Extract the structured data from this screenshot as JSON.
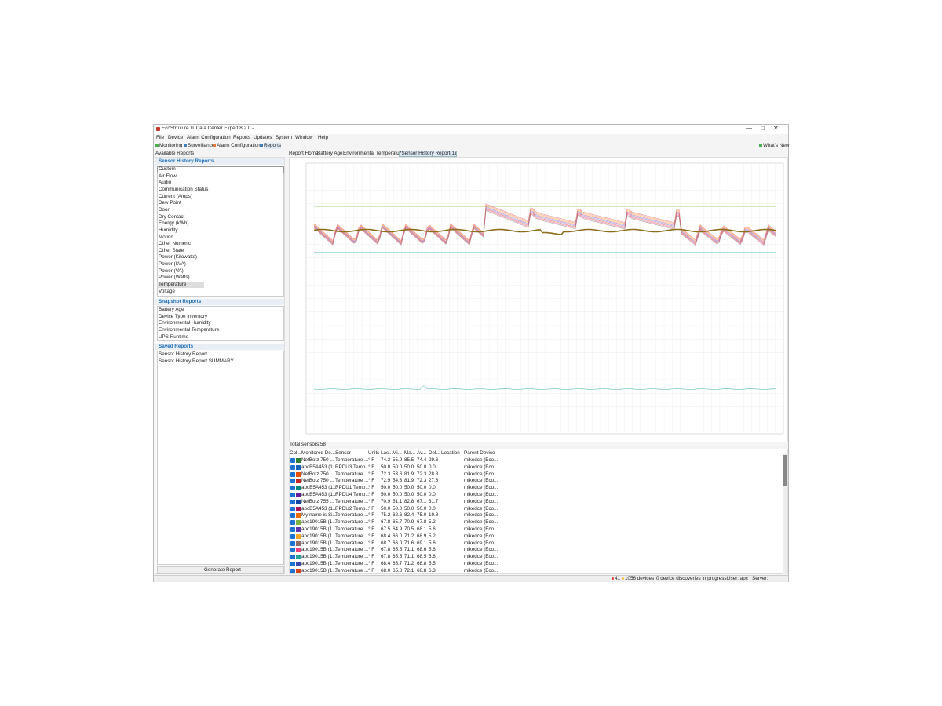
{
  "window": {
    "title": "EcoStruxure IT Data Center Expert 8.2.0 -",
    "menu": [
      "File",
      "Device",
      "Alarm Configuration",
      "Reports",
      "Updates",
      "System",
      "Window",
      "Help"
    ],
    "toolbar": [
      "Monitoring",
      "Surveillance",
      "Alarm Configuration",
      "Reports"
    ],
    "whats_new": "What's New"
  },
  "sidebar": {
    "title": "Available Reports",
    "sections": [
      {
        "title": "Sensor History Reports",
        "items": [
          "Custom",
          "Air Flow",
          "Audio",
          "Communication Status",
          "Current (Amps)",
          "Dew Point",
          "Door",
          "Dry Contact",
          "Energy (kWh)",
          "Humidity",
          "Motion",
          "Other Numeric",
          "Other State",
          "Power (Kilowatts)",
          "Power (kVA)",
          "Power (VA)",
          "Power (Watts)",
          "Temperature",
          "Voltage"
        ]
      },
      {
        "title": "Snapshot Reports",
        "items": [
          "Battery Age",
          "Device Type Inventory",
          "Environmental Humidity",
          "Environmental Temperature",
          "UPS Runtime"
        ]
      },
      {
        "title": "Saved Reports",
        "items": [
          "Sensor History Report",
          "Sensor History Report SUMMARY"
        ]
      }
    ],
    "button": "Generate Report"
  },
  "tabs": [
    "Report Home",
    "Battery Age",
    "Environmental Temperature",
    "*Sensor History Report(1)"
  ],
  "total_sensors": "Total sensors:58",
  "table": {
    "columns": [
      "Col...",
      "Monitored De...",
      "Sensor",
      "Units",
      "Las...",
      "Mi...",
      "Ma...",
      "Av...",
      "Del...",
      "Location",
      "Parent Device"
    ],
    "row_colors": [
      "#2e7d32",
      "#1565c0",
      "#e65100",
      "#c62828",
      "#00897b",
      "#6a1b9a",
      "#0d47a1",
      "#ad1457",
      "#ef6c00",
      "#7cb342",
      "#5e35b1",
      "#f9a825",
      "#8d6e63",
      "#ec407a",
      "#26a69a",
      "#3949ab",
      "#d84315"
    ],
    "rows": [
      [
        "NetBotz 750 ...",
        "Temperature ...",
        "° F",
        "74.3",
        "55.9",
        "85.5",
        "74.4",
        "29.6",
        "mikedce (Eco..."
      ],
      [
        "apcB5A453 (1...",
        "RPDU3 Temp...",
        "° F",
        "50.0",
        "50.0",
        "50.0",
        "50.0",
        "0.0",
        "mikedce (Eco..."
      ],
      [
        "NetBotz 750 ...",
        "Temperature ...",
        "° F",
        "72.3",
        "53.6",
        "81.9",
        "72.3",
        "28.3",
        "mikedce (Eco..."
      ],
      [
        "NetBotz 750 ...",
        "Temperature ...",
        "° F",
        "72.9",
        "54.3",
        "81.9",
        "72.3",
        "27.6",
        "mikedce (Eco..."
      ],
      [
        "apcB5A453 (1...",
        "RPDU1 Temp...",
        "° F",
        "50.0",
        "50.0",
        "50.0",
        "50.0",
        "0.0",
        "mikedce (Eco..."
      ],
      [
        "apcB5A453 (1...",
        "RPDU4 Temp...",
        "° F",
        "50.0",
        "50.0",
        "50.0",
        "50.0",
        "0.0",
        "mikedce (Eco..."
      ],
      [
        "NetBotz 755 ...",
        "Temperature ...",
        "° F",
        "70.9",
        "51.1",
        "82.8",
        "67.1",
        "31.7",
        "mikedce (Eco..."
      ],
      [
        "apcB5A453 (1...",
        "RPDU2 Temp...",
        "° F",
        "50.0",
        "50.0",
        "50.0",
        "50.0",
        "0.0",
        "mikedce (Eco..."
      ],
      [
        "My name is Si...",
        "Temperature ...",
        "° F",
        "75.2",
        "62.6",
        "82.4",
        "75.0",
        "19.8",
        "mikedce (Eco..."
      ],
      [
        "apc19015B (1...",
        "Temperature ...",
        "° F",
        "67.8",
        "65.7",
        "70.9",
        "67.8",
        "5.2",
        "mikedce (Eco..."
      ],
      [
        "apc19015B (1...",
        "Temperature ...",
        "° F",
        "67.5",
        "64.9",
        "70.5",
        "68.1",
        "5.6",
        "mikedce (Eco..."
      ],
      [
        "apc19015B (1...",
        "Temperature ...",
        "° F",
        "68.4",
        "66.0",
        "71.2",
        "68.9",
        "5.2",
        "mikedce (Eco..."
      ],
      [
        "apc19015B (1...",
        "Temperature ...",
        "° F",
        "68.7",
        "66.0",
        "71.6",
        "69.1",
        "5.6",
        "mikedce (Eco..."
      ],
      [
        "apc19015B (1...",
        "Temperature ...",
        "° F",
        "67.8",
        "65.5",
        "71.1",
        "68.6",
        "5.6",
        "mikedce (Eco..."
      ],
      [
        "apc19015B (1...",
        "Temperature ...",
        "° F",
        "67.8",
        "65.5",
        "71.1",
        "68.5",
        "5.6",
        "mikedce (Eco..."
      ],
      [
        "apc19015B (1...",
        "Temperature ...",
        "° F",
        "68.4",
        "65.7",
        "71.2",
        "68.8",
        "5.5",
        "mikedce (Eco..."
      ],
      [
        "apc19015B (1...",
        "Temperature ...",
        "° F",
        "68.0",
        "65.8",
        "72.1",
        "68.8",
        "6.3",
        "mikedce (Eco..."
      ]
    ]
  },
  "status": [
    "41",
    "10",
    "56 devices",
    "0 device discoveries in progress.",
    "User: apc | Server:"
  ]
}
